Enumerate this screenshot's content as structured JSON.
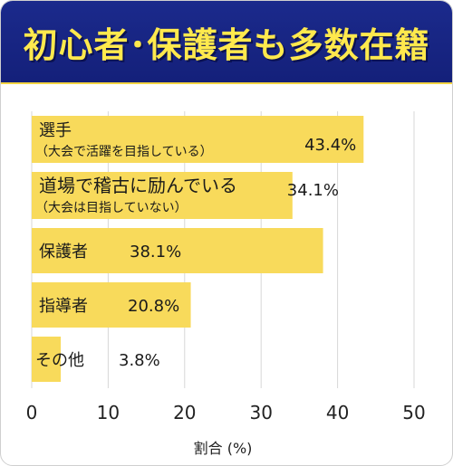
{
  "header": {
    "title": "初心者･保護者も多数在籍"
  },
  "chart_data": {
    "type": "bar",
    "orientation": "horizontal",
    "title": "初心者･保護者も多数在籍",
    "xlabel": "割合 (%)",
    "xlim": [
      0,
      50
    ],
    "xticks": [
      0,
      10,
      20,
      30,
      40,
      50
    ],
    "grid": true,
    "bars": [
      {
        "label": "選手",
        "sublabel": "（大会で活躍を目指している）",
        "value": 43.4,
        "value_label": "43.4%"
      },
      {
        "label": "道場で稽古に励んでいる",
        "sublabel": "（大会は目指していない）",
        "value": 34.1,
        "value_label": "34.1%"
      },
      {
        "label": "保護者",
        "sublabel": "",
        "value": 38.1,
        "value_label": "38.1%"
      },
      {
        "label": "指導者",
        "sublabel": "",
        "value": 20.8,
        "value_label": "20.8%"
      },
      {
        "label": "その他",
        "sublabel": "",
        "value": 3.8,
        "value_label": "3.8%"
      }
    ],
    "colors": {
      "bar": "#f8da5b",
      "header_bg": "#1b2a8c",
      "header_text": "#ffe94d"
    }
  }
}
